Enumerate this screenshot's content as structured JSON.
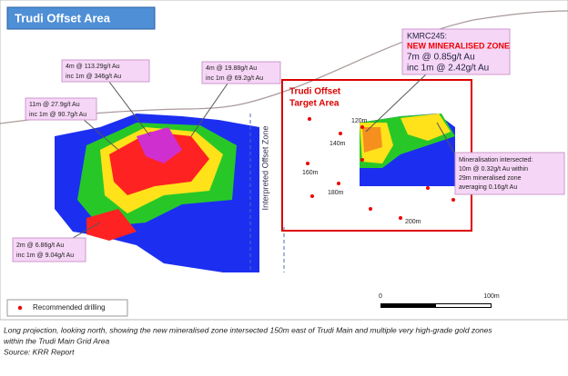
{
  "title": "Trudi Offset Area",
  "callouts": [
    {
      "lines": [
        "4m @ 113.29g/t Au",
        "inc 1m @ 346g/t Au"
      ]
    },
    {
      "lines": [
        "4m @ 19.88g/t Au",
        "inc 1m @ 69.2g/t Au"
      ]
    },
    {
      "lines": [
        "11m @ 27.9g/t Au",
        "inc 1m @ 90.7g/t Au"
      ]
    },
    {
      "lines": [
        "2m @ 6.86g/t Au",
        "inc 1m @ 9.04g/t Au"
      ]
    }
  ],
  "new_zone": {
    "lines": [
      "KMRC245:",
      "NEW MINERALISED ZONE",
      "7m @ 0.85g/t Au",
      "inc 1m @ 2.42g/t Au"
    ]
  },
  "target_area": {
    "lines": [
      "Trudi Offset",
      "Target Area"
    ]
  },
  "offset_zone_label": "Interpreted Offset Zone",
  "depth_labels": [
    "120m",
    "140m",
    "160m",
    "180m",
    "200m"
  ],
  "mineralisation_note": {
    "lines": [
      "Mineralisation intersected:",
      "10m @ 0.32g/t Au within",
      "29m mineralised zone",
      "averaging 0.16g/t Au"
    ]
  },
  "legend": {
    "label": "Recommended drilling"
  },
  "scale_bar": {
    "labels": [
      "0",
      "100m"
    ]
  },
  "caption": {
    "lines": [
      "Long projection, looking north, showing the new mineralised zone intersected 150m east of Trudi Main and multiple very high-grade gold zones",
      "within the Trudi Main Grid Area"
    ],
    "source": "Source: KRR Report"
  }
}
